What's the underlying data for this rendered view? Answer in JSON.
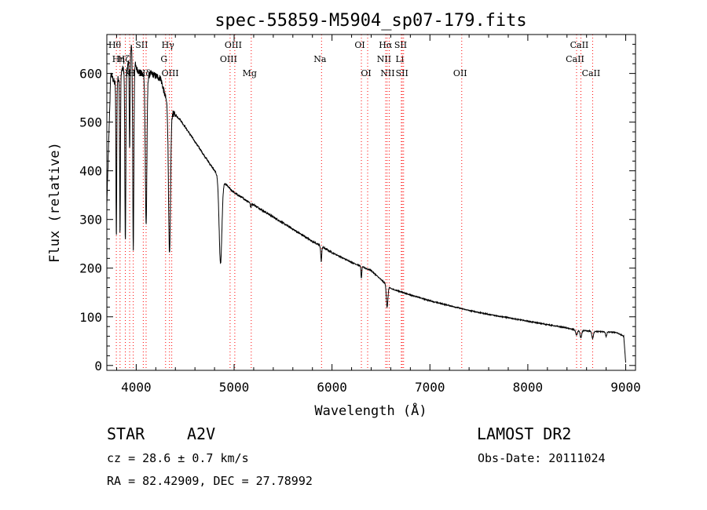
{
  "chart_data": {
    "type": "line",
    "title": "spec-55859-M5904_sp07-179.fits",
    "xlabel": "Wavelength (Å)",
    "ylabel": "Flux (relative)",
    "xlim": [
      3700,
      9100
    ],
    "ylim": [
      -10,
      680
    ],
    "x_ticks": [
      4000,
      5000,
      6000,
      7000,
      8000,
      9000
    ],
    "y_ticks": [
      0,
      100,
      200,
      300,
      400,
      500,
      600
    ],
    "line_color": "#000000",
    "marker_color": "#ff0000",
    "continuum": [
      [
        3700,
        330
      ],
      [
        3740,
        600
      ],
      [
        3780,
        580
      ],
      [
        3820,
        590
      ],
      [
        3860,
        610
      ],
      [
        3900,
        600
      ],
      [
        3950,
        660
      ],
      [
        4000,
        610
      ],
      [
        4050,
        600
      ],
      [
        4100,
        590
      ],
      [
        4150,
        600
      ],
      [
        4200,
        595
      ],
      [
        4250,
        590
      ],
      [
        4300,
        550
      ],
      [
        4350,
        520
      ],
      [
        4400,
        515
      ],
      [
        4450,
        505
      ],
      [
        4500,
        490
      ],
      [
        4600,
        460
      ],
      [
        4700,
        430
      ],
      [
        4800,
        400
      ],
      [
        4860,
        385
      ],
      [
        4900,
        375
      ],
      [
        5000,
        355
      ],
      [
        5200,
        330
      ],
      [
        5400,
        305
      ],
      [
        5600,
        280
      ],
      [
        5800,
        255
      ],
      [
        6000,
        232
      ],
      [
        6200,
        212
      ],
      [
        6400,
        195
      ],
      [
        6600,
        158
      ],
      [
        6800,
        145
      ],
      [
        7000,
        133
      ],
      [
        7200,
        123
      ],
      [
        7400,
        113
      ],
      [
        7600,
        105
      ],
      [
        7800,
        98
      ],
      [
        8000,
        91
      ],
      [
        8200,
        84
      ],
      [
        8400,
        77
      ],
      [
        8500,
        72
      ],
      [
        8700,
        70
      ],
      [
        8900,
        68
      ],
      [
        8980,
        60
      ],
      [
        9000,
        5
      ]
    ],
    "absorption_lines": [
      {
        "x": 3797,
        "depth": 320,
        "width": 4
      },
      {
        "x": 3835,
        "depth": 330,
        "width": 4
      },
      {
        "x": 3889,
        "depth": 350,
        "width": 5
      },
      {
        "x": 3933,
        "depth": 200,
        "width": 4
      },
      {
        "x": 3970,
        "depth": 400,
        "width": 6
      },
      {
        "x": 4101,
        "depth": 300,
        "width": 8
      },
      {
        "x": 4340,
        "depth": 300,
        "width": 10
      },
      {
        "x": 4861,
        "depth": 175,
        "width": 14
      },
      {
        "x": 5170,
        "depth": 10,
        "width": 4
      },
      {
        "x": 5890,
        "depth": 30,
        "width": 5
      },
      {
        "x": 6300,
        "depth": 25,
        "width": 4
      },
      {
        "x": 6563,
        "depth": 45,
        "width": 8
      },
      {
        "x": 8498,
        "depth": 10,
        "width": 8
      },
      {
        "x": 8542,
        "depth": 15,
        "width": 8
      },
      {
        "x": 8662,
        "depth": 15,
        "width": 8
      },
      {
        "x": 8800,
        "depth": 10,
        "width": 6
      }
    ],
    "line_markers": [
      {
        "x": 3797,
        "label": "Hθ",
        "row": 0
      },
      {
        "x": 3835,
        "label": "Hη",
        "row": 1
      },
      {
        "x": 3889,
        "label": "Hζ",
        "row": 1
      },
      {
        "x": 3933,
        "label": "K",
        "row": 2
      },
      {
        "x": 3970,
        "label": "H",
        "row": 2
      },
      {
        "x": 4072,
        "label": "SII",
        "row": 0
      },
      {
        "x": 4101,
        "label": "Hδ",
        "row": 2
      },
      {
        "x": 4300,
        "label": "G",
        "row": 1
      },
      {
        "x": 4340,
        "label": "Hγ",
        "row": 0
      },
      {
        "x": 4363,
        "label": "OIII",
        "row": 2
      },
      {
        "x": 4959,
        "label": "OIII",
        "row": 1
      },
      {
        "x": 5007,
        "label": "OIII",
        "row": 0
      },
      {
        "x": 5175,
        "label": "Mg",
        "row": 2
      },
      {
        "x": 5893,
        "label": "Na",
        "row": 1
      },
      {
        "x": 6300,
        "label": "OI",
        "row": 0
      },
      {
        "x": 6364,
        "label": "OI",
        "row": 2
      },
      {
        "x": 6548,
        "label": "NII",
        "row": 1
      },
      {
        "x": 6563,
        "label": "Hα",
        "row": 0
      },
      {
        "x": 6584,
        "label": "NII",
        "row": 2
      },
      {
        "x": 6708,
        "label": "Li",
        "row": 1
      },
      {
        "x": 6717,
        "label": "SII",
        "row": 0
      },
      {
        "x": 6731,
        "label": "SII",
        "row": 2
      },
      {
        "x": 7325,
        "label": "OII",
        "row": 2
      },
      {
        "x": 8498,
        "label": "CaII",
        "row": 1
      },
      {
        "x": 8542,
        "label": "CaII",
        "row": 0
      },
      {
        "x": 8662,
        "label": "CaII",
        "row": 2
      }
    ]
  },
  "info": {
    "object_class": "STAR",
    "subclass": "A2V",
    "cz": "cz = 28.6 ± 0.7 km/s",
    "coords": "RA =  82.42909, DEC =  27.78992",
    "survey": "LAMOST DR2",
    "obs_date": "Obs-Date: 20111024"
  }
}
